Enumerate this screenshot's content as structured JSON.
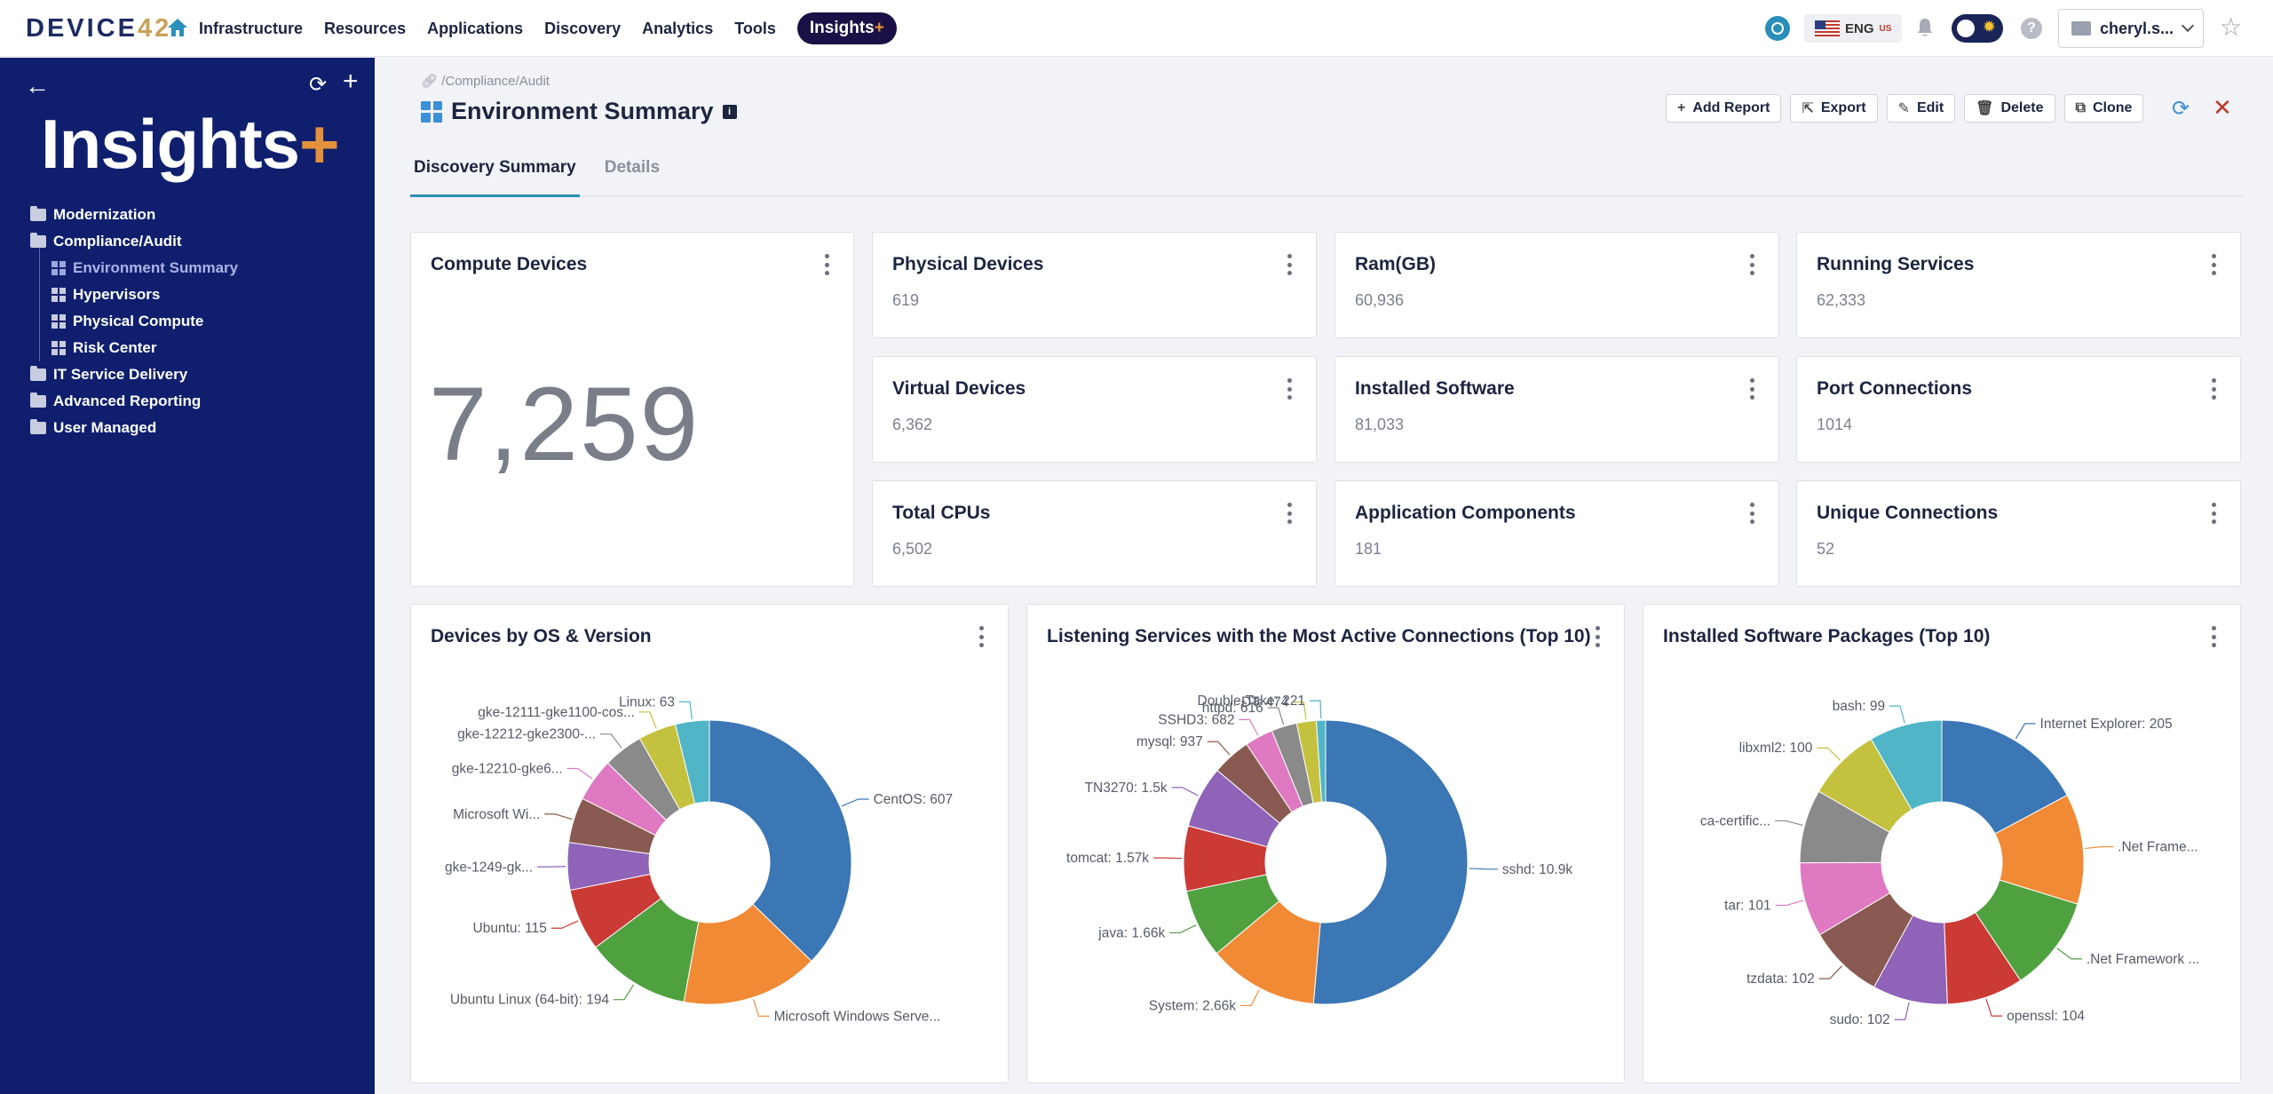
{
  "app": {
    "logo_prefix": "DEVICE",
    "logo_accent": "42",
    "nav": [
      "Infrastructure",
      "Resources",
      "Applications",
      "Discovery",
      "Analytics",
      "Tools"
    ],
    "insights_label": "Insights",
    "insights_plus": "+",
    "lang": "ENG",
    "lang_region": "US",
    "help": "?",
    "user": "cheryl.s...",
    "star": "☆"
  },
  "sidebar": {
    "title": "Insights",
    "title_plus": "+",
    "back": "←",
    "refresh": "⟳",
    "add": "+",
    "items": [
      {
        "label": "Modernization",
        "type": "folder",
        "level": 0
      },
      {
        "label": "Compliance/Audit",
        "type": "folder-open",
        "level": 0
      },
      {
        "label": "Environment Summary",
        "type": "dashboard",
        "level": 1,
        "active": true
      },
      {
        "label": "Hypervisors",
        "type": "dashboard",
        "level": 1
      },
      {
        "label": "Physical Compute",
        "type": "dashboard",
        "level": 1
      },
      {
        "label": "Risk Center",
        "type": "dashboard",
        "level": 1
      },
      {
        "label": "IT Service Delivery",
        "type": "folder",
        "level": 0
      },
      {
        "label": "Advanced Reporting",
        "type": "folder",
        "level": 0
      },
      {
        "label": "User Managed",
        "type": "folder",
        "level": 0
      }
    ]
  },
  "page": {
    "breadcrumb": "/Compliance/Audit",
    "title": "Environment Summary",
    "info_badge": "i",
    "actions": [
      {
        "label": "Add Report",
        "icon": "+"
      },
      {
        "label": "Export",
        "icon": "⇱"
      },
      {
        "label": "Edit",
        "icon": "✎"
      },
      {
        "label": "Delete",
        "icon": "🗑"
      },
      {
        "label": "Clone",
        "icon": "⧉"
      }
    ],
    "reload": "⟳",
    "close": "✕",
    "tabs": [
      {
        "label": "Discovery Summary",
        "active": true
      },
      {
        "label": "Details",
        "active": false
      }
    ]
  },
  "metrics": {
    "compute": {
      "title": "Compute Devices",
      "value": "7,259"
    },
    "tiles": [
      {
        "title": "Physical Devices",
        "value": "619"
      },
      {
        "title": "Ram(GB)",
        "value": "60,936"
      },
      {
        "title": "Running Services",
        "value": "62,333"
      },
      {
        "title": "Virtual Devices",
        "value": "6,362"
      },
      {
        "title": "Installed Software",
        "value": "81,033"
      },
      {
        "title": "Port Connections",
        "value": "1014"
      },
      {
        "title": "Total CPUs",
        "value": "6,502"
      },
      {
        "title": "Application Components",
        "value": "181"
      },
      {
        "title": "Unique Connections",
        "value": "52"
      }
    ]
  },
  "colors": {
    "palette": [
      "#3b76b5",
      "#f08a35",
      "#4fa13f",
      "#cc3a36",
      "#8f63b8",
      "#895a51",
      "#df79c1",
      "#8a8a8a",
      "#c4c13f",
      "#4fb5c7"
    ]
  },
  "chart_data": [
    {
      "type": "pie",
      "title": "Devices by OS & Version",
      "slices": [
        {
          "label": "CentOS: 607",
          "value": 607
        },
        {
          "label": "Microsoft Windows Serve...",
          "value": 255
        },
        {
          "label": "Ubuntu Linux (64-bit): 194",
          "value": 194
        },
        {
          "label": "Ubuntu: 115",
          "value": 115
        },
        {
          "label": "gke-1249-gk...",
          "value": 88
        },
        {
          "label": "Microsoft Wi...",
          "value": 84
        },
        {
          "label": "gke-12210-gke6...",
          "value": 80
        },
        {
          "label": "gke-12212-gke2300-...",
          "value": 74
        },
        {
          "label": "gke-12111-gke1100-cos...",
          "value": 70
        },
        {
          "label": "Linux: 63",
          "value": 63
        }
      ]
    },
    {
      "type": "pie",
      "title": "Listening Services with the Most Active Connections (Top 10)",
      "slices": [
        {
          "label": "sshd: 10.9k",
          "value": 10900
        },
        {
          "label": "System: 2.66k",
          "value": 2660
        },
        {
          "label": "java: 1.66k",
          "value": 1660
        },
        {
          "label": "tomcat: 1.57k",
          "value": 1570
        },
        {
          "label": "TN3270: 1.5k",
          "value": 1500
        },
        {
          "label": "mysql: 937",
          "value": 937
        },
        {
          "label": "SSHD3: 682",
          "value": 682
        },
        {
          "label": "httpd: 616",
          "value": 616
        },
        {
          "label": "DT: 474",
          "value": 474
        },
        {
          "label": "Double-Take: 221",
          "value": 221
        }
      ]
    },
    {
      "type": "pie",
      "title": "Installed Software Packages (Top 10)",
      "slices": [
        {
          "label": "Internet Explorer: 205",
          "value": 205
        },
        {
          "label": ".Net Frame...",
          "value": 150
        },
        {
          "label": ".Net Framework ...",
          "value": 130
        },
        {
          "label": "openssl: 104",
          "value": 104
        },
        {
          "label": "sudo: 102",
          "value": 102
        },
        {
          "label": "tzdata: 102",
          "value": 102
        },
        {
          "label": "tar: 101",
          "value": 101
        },
        {
          "label": "ca-certific...",
          "value": 100
        },
        {
          "label": "libxml2: 100",
          "value": 100
        },
        {
          "label": "bash: 99",
          "value": 99
        }
      ]
    }
  ]
}
